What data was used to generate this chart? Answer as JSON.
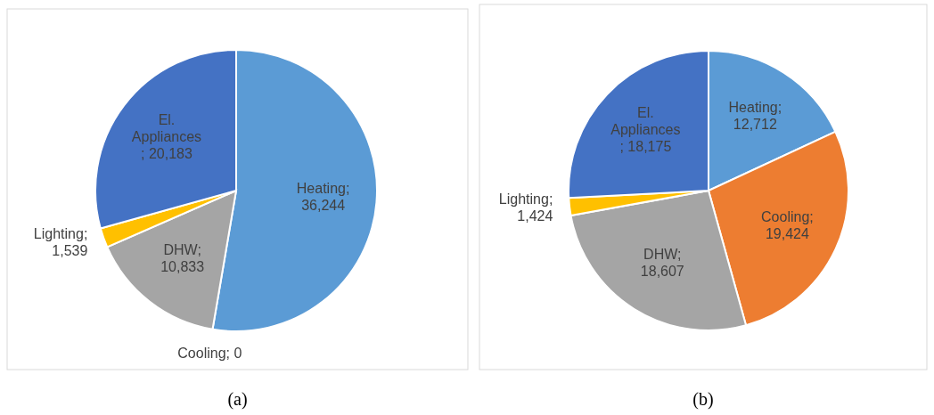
{
  "chart_data": [
    {
      "type": "pie",
      "categories": [
        "Heating",
        "Cooling",
        "DHW",
        "Lighting",
        "El. Appliances"
      ],
      "values": [
        36244,
        0,
        10833,
        1539,
        20183
      ],
      "value_labels": [
        "; 36,244",
        "; 0",
        "; 10,833",
        "; 1,539",
        "; 20,183"
      ],
      "colors": [
        "#5b9bd5",
        "#ed7d31",
        "#a5a5a5",
        "#ffc000",
        "#4472c4"
      ],
      "annotations": [
        "(a)"
      ]
    },
    {
      "type": "pie",
      "categories": [
        "Heating",
        "Cooling",
        "DHW",
        "Lighting",
        "El. Appliances"
      ],
      "values": [
        12712,
        19424,
        18607,
        1424,
        18175
      ],
      "value_labels": [
        "; 12,712",
        "; 19,424",
        "; 18,607",
        "; 1,424",
        "; 18,175"
      ],
      "colors": [
        "#5b9bd5",
        "#ed7d31",
        "#a5a5a5",
        "#ffc000",
        "#4472c4"
      ],
      "annotations": [
        "(b)"
      ]
    }
  ]
}
